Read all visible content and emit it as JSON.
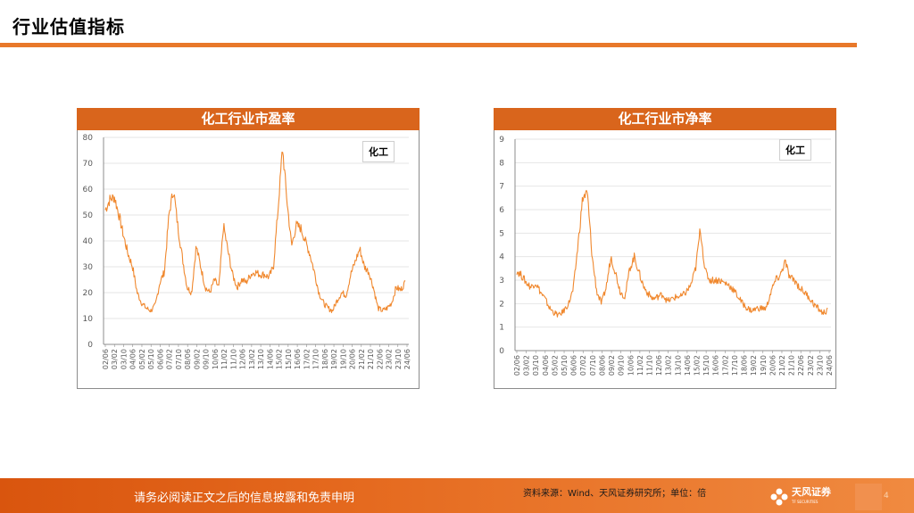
{
  "page": {
    "title": "行业估值指标",
    "footer_note": "请务必阅读正文之后的信息披露和免责申明",
    "source": "资料来源：Wind、天风证券研究所；单位：倍",
    "logo_text": "天风证券",
    "logo_sub": "TF SECURITIES",
    "page_number": "4"
  },
  "colors": {
    "accent": "#E8782A",
    "header": "#D9651C",
    "series": "#F0882E"
  },
  "chart_data": [
    {
      "type": "line",
      "title": "化工行业市盈率",
      "legend_tag": "化工",
      "series": [
        {
          "name": "化工",
          "x": [
            "02/06",
            "02/09",
            "03/01",
            "03/06",
            "03/10",
            "04/02",
            "04/06",
            "04/10",
            "05/02",
            "05/06",
            "05/10",
            "06/02",
            "06/06",
            "06/10",
            "07/02",
            "07/06",
            "07/10",
            "08/02",
            "08/06",
            "08/10",
            "09/02",
            "09/06",
            "09/10",
            "10/02",
            "10/06",
            "10/10",
            "11/02",
            "11/06",
            "11/10",
            "12/02",
            "12/06",
            "12/10",
            "13/02",
            "13/06",
            "13/10",
            "14/02",
            "14/06",
            "14/10",
            "15/02",
            "15/06",
            "15/10",
            "16/02",
            "16/06",
            "16/10",
            "17/02",
            "17/06",
            "17/10",
            "18/02",
            "18/06",
            "18/10",
            "19/02",
            "19/06",
            "19/10",
            "20/02",
            "20/06",
            "20/10",
            "21/02",
            "21/06",
            "21/10",
            "22/02",
            "22/06",
            "22/10",
            "23/02",
            "23/06",
            "23/10",
            "24/02",
            "24/06"
          ],
          "values": [
            52,
            56,
            57,
            50,
            42,
            35,
            30,
            20,
            16,
            14,
            13,
            15,
            24,
            28,
            50,
            60,
            45,
            33,
            22,
            20,
            38,
            30,
            22,
            20,
            25,
            22,
            46,
            36,
            27,
            22,
            25,
            24,
            27,
            28,
            27,
            27,
            26,
            30,
            52,
            76,
            55,
            38,
            46,
            45,
            40,
            35,
            28,
            20,
            16,
            14,
            13,
            17,
            20,
            19,
            27,
            32,
            37,
            30,
            28,
            22,
            14,
            13,
            14,
            16,
            22,
            21,
            24
          ]
        }
      ],
      "categories": [
        "02/06",
        "03/02",
        "03/10",
        "04/06",
        "05/02",
        "05/10",
        "06/06",
        "07/02",
        "07/10",
        "08/06",
        "09/02",
        "09/10",
        "10/06",
        "11/02",
        "11/10",
        "12/06",
        "13/02",
        "13/10",
        "14/06",
        "15/02",
        "15/10",
        "16/06",
        "17/02",
        "17/10",
        "18/06",
        "19/02",
        "19/10",
        "20/06",
        "21/02",
        "21/10",
        "22/06",
        "23/02",
        "23/10",
        "24/06"
      ],
      "ylim": [
        0,
        80
      ],
      "yticks": [
        "80",
        "70",
        "60",
        "50",
        "40",
        "30",
        "20",
        "10",
        "0"
      ]
    },
    {
      "type": "line",
      "title": "化工行业市净率",
      "legend_tag": "化工",
      "series": [
        {
          "name": "化工",
          "x": [
            "02/06",
            "02/09",
            "03/01",
            "03/06",
            "03/10",
            "04/02",
            "04/06",
            "04/10",
            "05/02",
            "05/06",
            "05/10",
            "06/02",
            "06/06",
            "06/10",
            "07/02",
            "07/06",
            "07/10",
            "08/02",
            "08/06",
            "08/10",
            "09/02",
            "09/06",
            "09/10",
            "10/02",
            "10/06",
            "10/10",
            "11/02",
            "11/06",
            "11/10",
            "12/02",
            "12/06",
            "12/10",
            "13/02",
            "13/06",
            "13/10",
            "14/02",
            "14/06",
            "14/10",
            "15/02",
            "15/06",
            "15/10",
            "16/02",
            "16/06",
            "16/10",
            "17/02",
            "17/06",
            "17/10",
            "18/02",
            "18/06",
            "18/10",
            "19/02",
            "19/06",
            "19/10",
            "20/02",
            "20/06",
            "20/10",
            "21/02",
            "21/06",
            "21/10",
            "22/02",
            "22/06",
            "22/10",
            "23/02",
            "23/06",
            "23/10",
            "24/02",
            "24/06"
          ],
          "values": [
            3.4,
            3.2,
            2.9,
            2.7,
            2.9,
            2.5,
            2.2,
            1.8,
            1.6,
            1.5,
            1.7,
            2.0,
            2.6,
            4.5,
            6.5,
            6.7,
            4.0,
            2.5,
            2.0,
            2.7,
            4.0,
            3.3,
            2.5,
            2.3,
            3.5,
            4.0,
            3.3,
            2.7,
            2.4,
            2.2,
            2.3,
            2.4,
            2.1,
            2.2,
            2.3,
            2.3,
            2.5,
            2.8,
            3.5,
            5.2,
            3.4,
            3.0,
            3.0,
            3.0,
            2.9,
            2.8,
            2.6,
            2.3,
            2.0,
            1.8,
            1.7,
            1.8,
            1.8,
            1.8,
            2.5,
            3.0,
            3.2,
            3.8,
            3.1,
            3.0,
            2.7,
            2.5,
            2.3,
            2.0,
            1.8,
            1.6,
            1.7
          ]
        }
      ],
      "categories": [
        "02/06",
        "03/02",
        "03/10",
        "04/06",
        "05/02",
        "05/10",
        "06/06",
        "07/02",
        "07/10",
        "08/06",
        "09/02",
        "09/10",
        "10/06",
        "11/02",
        "11/10",
        "12/06",
        "13/02",
        "13/10",
        "14/06",
        "15/02",
        "15/10",
        "16/06",
        "17/02",
        "17/10",
        "18/06",
        "19/02",
        "19/10",
        "20/06",
        "21/02",
        "21/10",
        "22/06",
        "23/02",
        "23/10",
        "24/06"
      ],
      "ylim": [
        0,
        9
      ],
      "yticks": [
        "9",
        "8",
        "7",
        "6",
        "5",
        "4",
        "3",
        "2",
        "1",
        "0"
      ]
    }
  ]
}
